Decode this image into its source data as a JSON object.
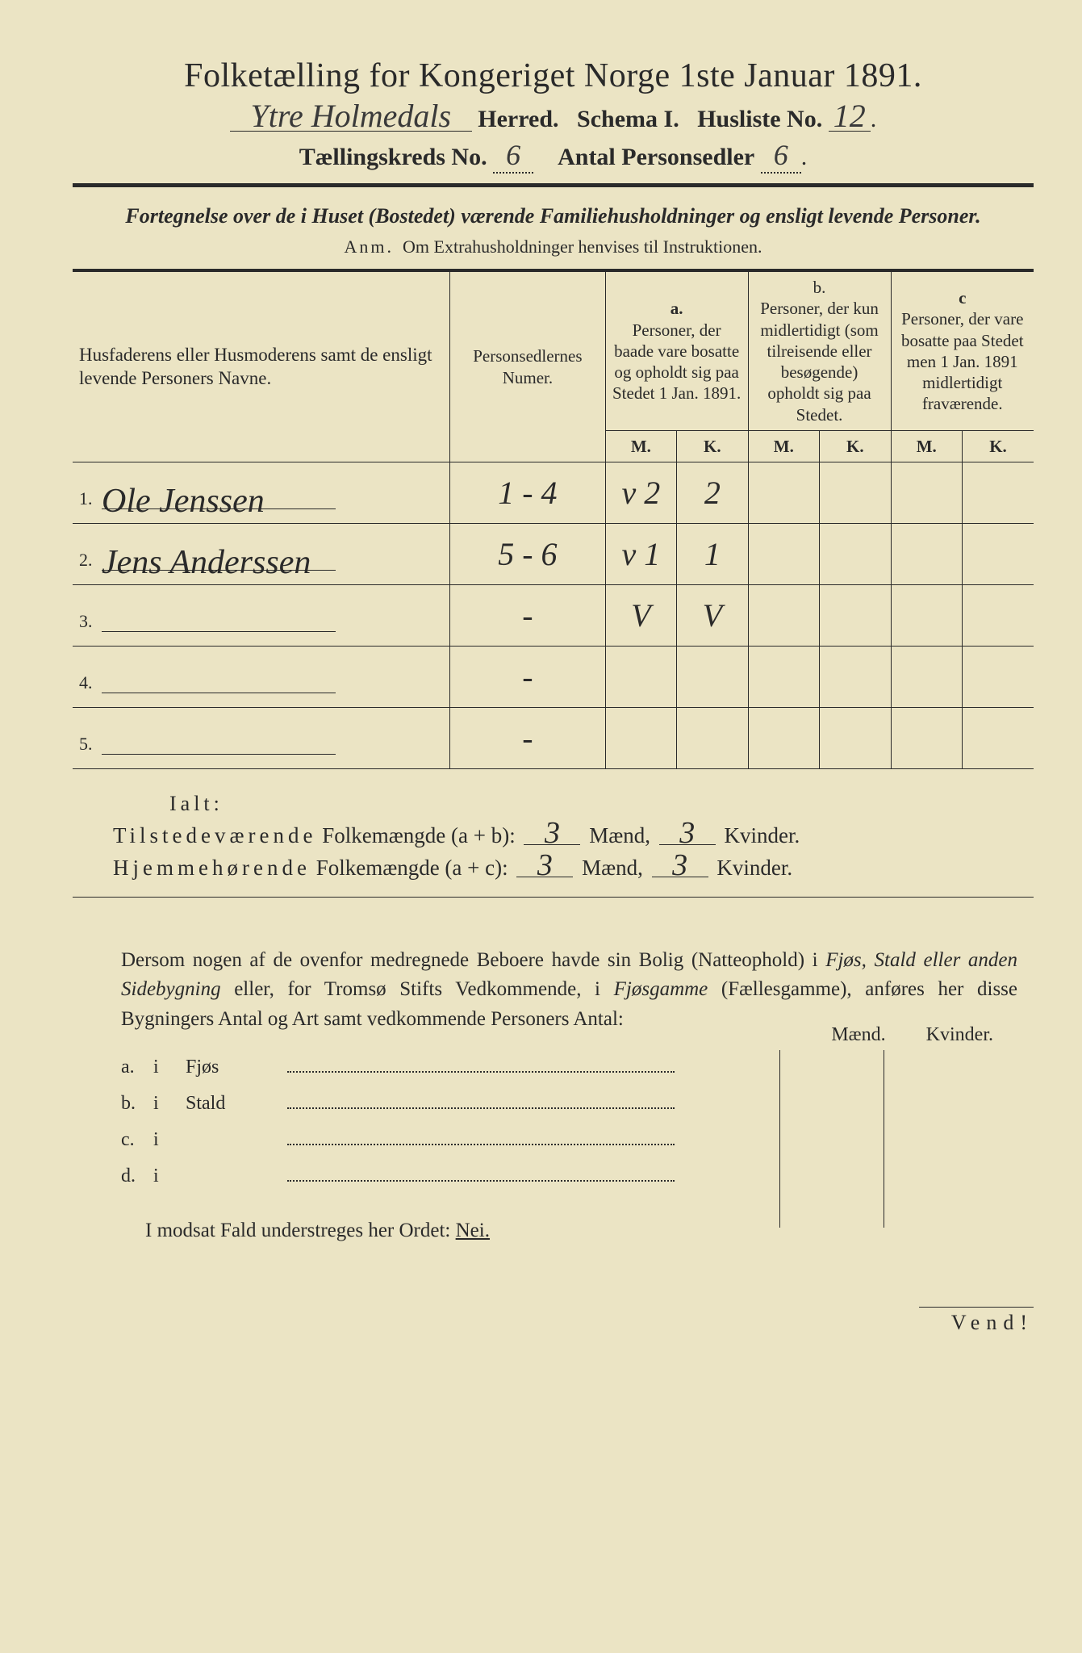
{
  "title": "Folketælling for Kongeriget Norge 1ste Januar 1891.",
  "herred_hw": "Ytre Holmedals",
  "herred_label": "Herred.",
  "schema": "Schema I.",
  "husliste_label": "Husliste No.",
  "husliste_no": "12",
  "kreds_label": "Tællingskreds No.",
  "kreds_no": "6",
  "antal_label": "Antal Personsedler",
  "antal_no": "6",
  "subtitle": "Fortegnelse over de i Huset (Bostedet) værende Familiehusholdninger og ensligt levende Personer.",
  "anm_label": "Anm.",
  "anm_text": "Om Extrahusholdninger henvises til Instruktionen.",
  "col_name": "Husfaderens eller Husmoderens samt de ensligt levende Personers Navne.",
  "col_num": "Personsedlernes Numer.",
  "col_a_head": "a.",
  "col_a": "Personer, der baade vare bosatte og opholdt sig paa Stedet 1 Jan. 1891.",
  "col_b_head": "b.",
  "col_b": "Personer, der kun midlertidigt (som tilreisende eller besøgende) opholdt sig paa Stedet.",
  "col_c_head": "c",
  "col_c": "Personer, der vare bosatte paa Stedet men 1 Jan. 1891 midlertidigt fraværende.",
  "M": "M.",
  "K": "K.",
  "rows": [
    {
      "n": "1.",
      "name": "Ole Jenssen",
      "num": "1 - 4",
      "aM": "v 2",
      "aK": "2",
      "bM": "",
      "bK": "",
      "cM": "",
      "cK": ""
    },
    {
      "n": "2.",
      "name": "Jens Anderssen",
      "num": "5 - 6",
      "aM": "v 1",
      "aK": "1",
      "bM": "",
      "bK": "",
      "cM": "",
      "cK": ""
    },
    {
      "n": "3.",
      "name": "",
      "num": "-",
      "aM": "V",
      "aK": "V",
      "bM": "",
      "bK": "",
      "cM": "",
      "cK": ""
    },
    {
      "n": "4.",
      "name": "",
      "num": "-",
      "aM": "",
      "aK": "",
      "bM": "",
      "bK": "",
      "cM": "",
      "cK": ""
    },
    {
      "n": "5.",
      "name": "",
      "num": "-",
      "aM": "",
      "aK": "",
      "bM": "",
      "bK": "",
      "cM": "",
      "cK": ""
    }
  ],
  "ialt": "Ialt:",
  "sum1_label_a": "Tilstedeværende",
  "sum1_label_b": "Folkemængde (a + b):",
  "sum2_label_a": "Hjemmehørende",
  "sum2_label_b": "Folkemængde (a + c):",
  "maend": "Mænd,",
  "kvinder": "Kvinder.",
  "sum1_m": "3",
  "sum1_k": "3",
  "sum2_m": "3",
  "sum2_k": "3",
  "para": "Dersom nogen af de ovenfor medregnede Beboere havde sin Bolig (Natteophold) i Fjøs, Stald eller anden Sidebygning eller, for Tromsø Stifts Vedkommende, i Fjøsgamme (Fællesgamme), anføres her disse Bygningers Antal og Art samt vedkommende Personers Antal:",
  "side_maend": "Mænd.",
  "side_kvinder": "Kvinder.",
  "side": [
    {
      "lett": "a.",
      "i": "i",
      "type": "Fjøs"
    },
    {
      "lett": "b.",
      "i": "i",
      "type": "Stald"
    },
    {
      "lett": "c.",
      "i": "i",
      "type": ""
    },
    {
      "lett": "d.",
      "i": "i",
      "type": ""
    }
  ],
  "nei_text_a": "I modsat Fald understreges her Ordet:",
  "nei_text_b": "Nei.",
  "vend": "Vend!",
  "colors": {
    "paper": "#ebe4c4",
    "ink": "#2a2a2a",
    "background": "#1a1a1a"
  }
}
